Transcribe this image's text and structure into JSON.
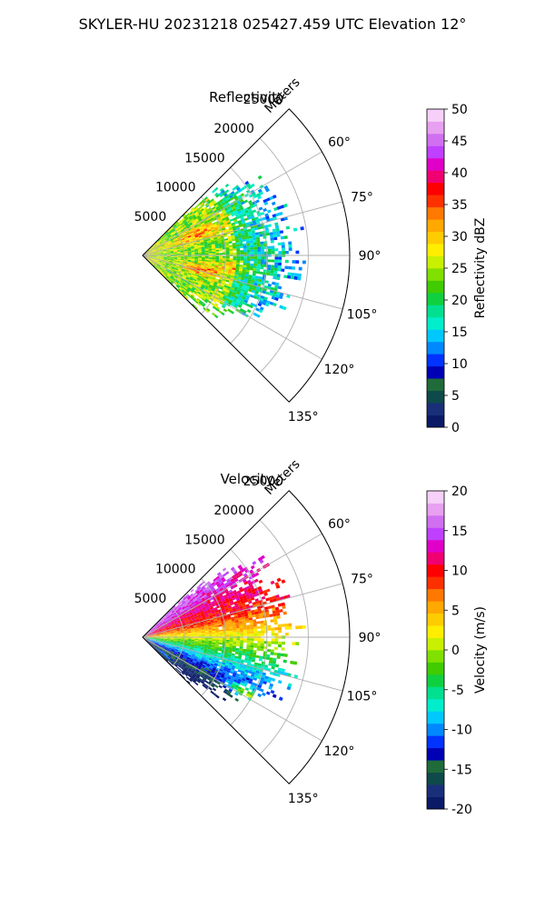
{
  "figure": {
    "title": "SKYLER-HU  20231218  025427.459 UTC Elevation 12°"
  },
  "chart_data": [
    {
      "type": "heatmap",
      "subtype": "polar-sector",
      "title": "Reflectivity",
      "range_label": "Meters",
      "range_ticks": [
        5000,
        10000,
        15000,
        20000,
        25000
      ],
      "range_limit": [
        0,
        25000
      ],
      "angle_ticks": [
        "60°",
        "75°",
        "90°",
        "105°",
        "120°",
        "135°"
      ],
      "angle_tick_values": [
        60,
        75,
        90,
        105,
        120,
        135
      ],
      "angle_range": [
        45,
        135
      ],
      "grid": true,
      "colorbar": {
        "label": "Reflectivity dBZ",
        "min": 0,
        "max": 50,
        "ticks": [
          0,
          5,
          10,
          15,
          20,
          25,
          30,
          35,
          40,
          45,
          50
        ],
        "colors": [
          "#0a1a66",
          "#1a2f7a",
          "#0f4a4a",
          "#1f6b3a",
          "#0000b4",
          "#0033ff",
          "#0088ff",
          "#00c8ff",
          "#00eecc",
          "#00e090",
          "#10d040",
          "#40cc00",
          "#80e000",
          "#c8f000",
          "#ffee00",
          "#ffcc00",
          "#ffa800",
          "#ff7800",
          "#ff3000",
          "#ff0000",
          "#f00070",
          "#e000c8",
          "#c040ff",
          "#d070f0",
          "#e8a0f0",
          "#f6d0f8"
        ]
      },
      "field_notes": "Echo sector roughly 0–18000 m, mostly 20–35 dBZ with cores near 35–40 dBZ around bearings 65–75° and 100–110°; sparse 15–22 dBZ edge beyond 12000 m."
    },
    {
      "type": "heatmap",
      "subtype": "polar-sector",
      "title": "Velocity",
      "range_label": "Meters",
      "range_ticks": [
        5000,
        10000,
        15000,
        20000,
        25000
      ],
      "range_limit": [
        0,
        25000
      ],
      "angle_ticks": [
        "60°",
        "75°",
        "90°",
        "105°",
        "120°",
        "135°"
      ],
      "angle_tick_values": [
        60,
        75,
        90,
        105,
        120,
        135
      ],
      "angle_range": [
        45,
        135
      ],
      "grid": true,
      "colorbar": {
        "label": "Velocity (m/s)",
        "min": -20,
        "max": 20,
        "ticks": [
          -20,
          -15,
          -10,
          -5,
          0,
          5,
          10,
          15,
          20
        ],
        "colors": [
          "#0a1a66",
          "#1a2f7a",
          "#0f4a4a",
          "#1f6b3a",
          "#0000b4",
          "#0033ff",
          "#0088ff",
          "#00c8ff",
          "#00eecc",
          "#00e090",
          "#10d040",
          "#40cc00",
          "#80e000",
          "#c8f000",
          "#ffee00",
          "#ffcc00",
          "#ffa800",
          "#ff7800",
          "#ff3000",
          "#ff0000",
          "#f00070",
          "#e000c8",
          "#c040ff",
          "#d070f0",
          "#e8a0f0",
          "#f6d0f8"
        ]
      },
      "field_notes": "Positive velocities (+5 to +15 m/s) north of ~88°, near 0 m/s around 90–95°, negative (-5 to -12 m/s) south of ~95°, small +10 to +15 m/s patch near 125–130° close range."
    }
  ]
}
